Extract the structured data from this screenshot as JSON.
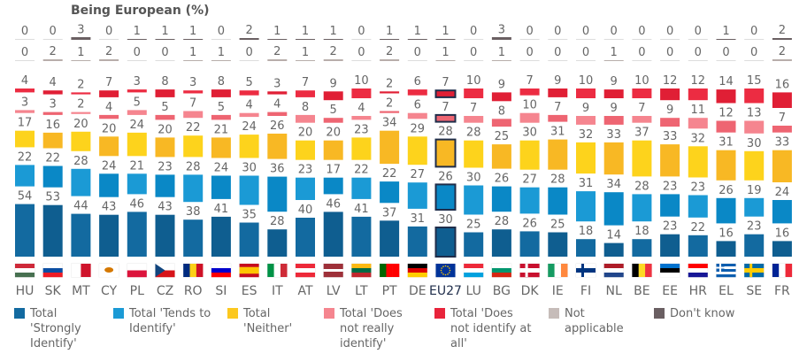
{
  "chart_data": {
    "type": "bar",
    "title": "Being European (%)",
    "stacked": true,
    "highlight": "EU27",
    "categories": [
      "HU",
      "SK",
      "MT",
      "CY",
      "PL",
      "CZ",
      "RO",
      "SI",
      "ES",
      "IT",
      "AT",
      "LV",
      "LT",
      "PT",
      "DE",
      "EU27",
      "LU",
      "BG",
      "DK",
      "IE",
      "FI",
      "NL",
      "BE",
      "EE",
      "HR",
      "EL",
      "SE",
      "FR"
    ],
    "series": [
      {
        "name": "Total 'Strongly Identify'",
        "color": "#136aa0",
        "color2": "#0f5e90",
        "values": [
          54,
          53,
          44,
          43,
          46,
          43,
          38,
          41,
          35,
          28,
          40,
          46,
          41,
          37,
          31,
          30,
          25,
          28,
          26,
          25,
          18,
          14,
          18,
          23,
          22,
          16,
          23,
          16
        ]
      },
      {
        "name": "Total 'Tends to Identify'",
        "color": "#1b9ad5",
        "color2": "#0a88c6",
        "values": [
          22,
          22,
          28,
          24,
          21,
          23,
          28,
          24,
          30,
          36,
          23,
          17,
          22,
          22,
          27,
          26,
          30,
          26,
          27,
          28,
          31,
          34,
          28,
          23,
          23,
          26,
          19,
          24
        ]
      },
      {
        "name": "Total 'Neither'",
        "color": "#fdd31c",
        "color2": "#f8b824",
        "values": [
          17,
          16,
          20,
          20,
          24,
          20,
          22,
          21,
          24,
          26,
          20,
          20,
          23,
          34,
          29,
          28,
          28,
          25,
          30,
          31,
          32,
          33,
          37,
          33,
          32,
          31,
          30,
          33
        ]
      },
      {
        "name": "Total 'Does not really identify'",
        "color": "#f5858f",
        "color2": "#ee6572",
        "values": [
          3,
          3,
          2,
          4,
          5,
          5,
          7,
          5,
          4,
          4,
          8,
          5,
          4,
          2,
          6,
          7,
          7,
          8,
          10,
          7,
          9,
          9,
          7,
          9,
          11,
          12,
          13,
          7
        ]
      },
      {
        "name": "Total 'Does not identify at all'",
        "color": "#ec2c42",
        "color2": "#e01f35",
        "values": [
          4,
          4,
          2,
          7,
          3,
          8,
          3,
          8,
          5,
          3,
          7,
          9,
          10,
          2,
          6,
          7,
          10,
          9,
          7,
          9,
          10,
          9,
          10,
          12,
          12,
          14,
          15,
          16
        ]
      },
      {
        "name": "Not applicable",
        "color": "#c6bcb9",
        "color2": "#b8aeab",
        "values": [
          0,
          2,
          1,
          2,
          0,
          0,
          1,
          1,
          0,
          2,
          1,
          2,
          0,
          2,
          0,
          1,
          0,
          1,
          0,
          0,
          0,
          1,
          0,
          0,
          0,
          0,
          0,
          2
        ]
      },
      {
        "name": "Don't know",
        "color": "#7a6f72",
        "color2": "#6a5f62",
        "values": [
          0,
          0,
          3,
          0,
          1,
          1,
          1,
          0,
          2,
          1,
          1,
          1,
          0,
          1,
          1,
          1,
          0,
          3,
          0,
          0,
          0,
          0,
          0,
          0,
          0,
          1,
          0,
          2
        ]
      }
    ],
    "xlabel": "",
    "ylabel": "",
    "ylim": [
      0,
      100
    ],
    "legend": "bottom"
  },
  "flags": {
    "HU": [
      "h",
      "#ce2939",
      "#ffffff",
      "#477050"
    ],
    "SK": [
      "h",
      "#ffffff",
      "#0b4ea2",
      "#ee1c25"
    ],
    "MT": [
      "v",
      "#ffffff",
      "#cf142b"
    ],
    "CY": [
      "h",
      "#ffffff",
      "#ffffff"
    ],
    "PL": [
      "h",
      "#ffffff",
      "#dc143c"
    ],
    "CZ": [
      "h",
      "#ffffff",
      "#d7141a"
    ],
    "RO": [
      "v",
      "#002b7f",
      "#fcd116",
      "#ce1126"
    ],
    "SI": [
      "h",
      "#ffffff",
      "#0000cc",
      "#ff0000"
    ],
    "ES": [
      "h",
      "#c60b1e",
      "#ffc400",
      "#ffc400",
      "#c60b1e"
    ],
    "IT": [
      "v",
      "#009246",
      "#ffffff",
      "#ce2b37"
    ],
    "AT": [
      "h",
      "#ed2939",
      "#ffffff",
      "#ed2939"
    ],
    "LV": [
      "h",
      "#9e3039",
      "#9e3039",
      "#ffffff",
      "#9e3039",
      "#9e3039"
    ],
    "LT": [
      "h",
      "#fdb913",
      "#006a44",
      "#c1272d"
    ],
    "PT": [
      "v",
      "#006600",
      "#ff0000",
      "#ff0000"
    ],
    "DE": [
      "h",
      "#000000",
      "#dd0000",
      "#ffce00"
    ],
    "EU27": [
      "h",
      "#003399",
      "#003399"
    ],
    "LU": [
      "h",
      "#ed2939",
      "#ffffff",
      "#00a1de"
    ],
    "BG": [
      "h",
      "#ffffff",
      "#00966e",
      "#d62612"
    ],
    "DK": [
      "h",
      "#c8102e",
      "#ffffff",
      "#c8102e"
    ],
    "IE": [
      "v",
      "#169b62",
      "#ffffff",
      "#ff883e"
    ],
    "FI": [
      "h",
      "#ffffff",
      "#003580",
      "#ffffff"
    ],
    "NL": [
      "h",
      "#ae1c28",
      "#ffffff",
      "#21468b"
    ],
    "BE": [
      "v",
      "#000000",
      "#fdda24",
      "#ef3340"
    ],
    "EE": [
      "h",
      "#0072ce",
      "#000000",
      "#ffffff"
    ],
    "HR": [
      "h",
      "#ff0000",
      "#ffffff",
      "#171796"
    ],
    "EL": [
      "h",
      "#0d5eaf",
      "#ffffff",
      "#0d5eaf",
      "#ffffff",
      "#0d5eaf"
    ],
    "SE": [
      "h",
      "#006aa7",
      "#fecc00",
      "#006aa7"
    ],
    "FR": [
      "v",
      "#002395",
      "#ffffff",
      "#ed2939"
    ]
  }
}
